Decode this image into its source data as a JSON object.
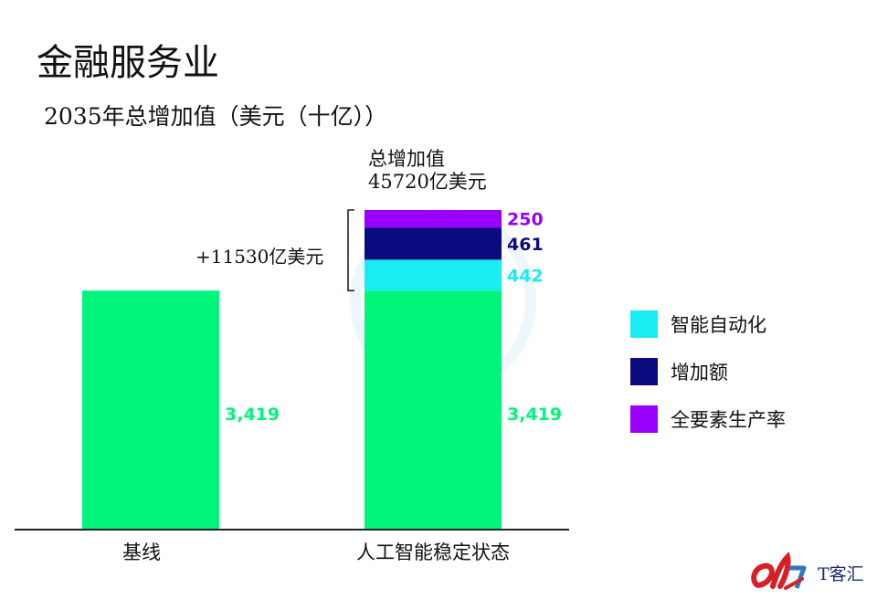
{
  "chart_data": {
    "type": "bar",
    "stacked": true,
    "title": "金融服务业",
    "subtitle": "2035年总增加值（美元（十亿））",
    "categories": [
      "基线",
      "人工智能稳定状态"
    ],
    "series": [
      {
        "name": "",
        "values": [
          3419,
          3419
        ],
        "labels": [
          "3,419",
          "3,419"
        ],
        "color": "#00f57a"
      },
      {
        "name": "智能自动化",
        "values": [
          0,
          442
        ],
        "labels": [
          "",
          "442"
        ],
        "color": "#19ecf3"
      },
      {
        "name": "增加额",
        "values": [
          0,
          461
        ],
        "labels": [
          "",
          "461"
        ],
        "color": "#0b0a7f"
      },
      {
        "name": "全要素生产率",
        "values": [
          0,
          250
        ],
        "labels": [
          "",
          "250"
        ],
        "color": "#9900ff"
      }
    ],
    "ylim": [
      0,
      4572
    ],
    "grid": false,
    "legend_position": "right",
    "annotations": {
      "total_line1": "总增加值",
      "total_line2": "45720亿美元",
      "increase": "+11530亿美元"
    }
  },
  "watermark": {
    "text": "T客汇",
    "icon": "tkehui-logo-icon",
    "colors": [
      "#d61f26",
      "#1b2c6b",
      "#2f78c4"
    ]
  },
  "colors": {
    "axis": "#222222",
    "label_text": "#111111"
  }
}
